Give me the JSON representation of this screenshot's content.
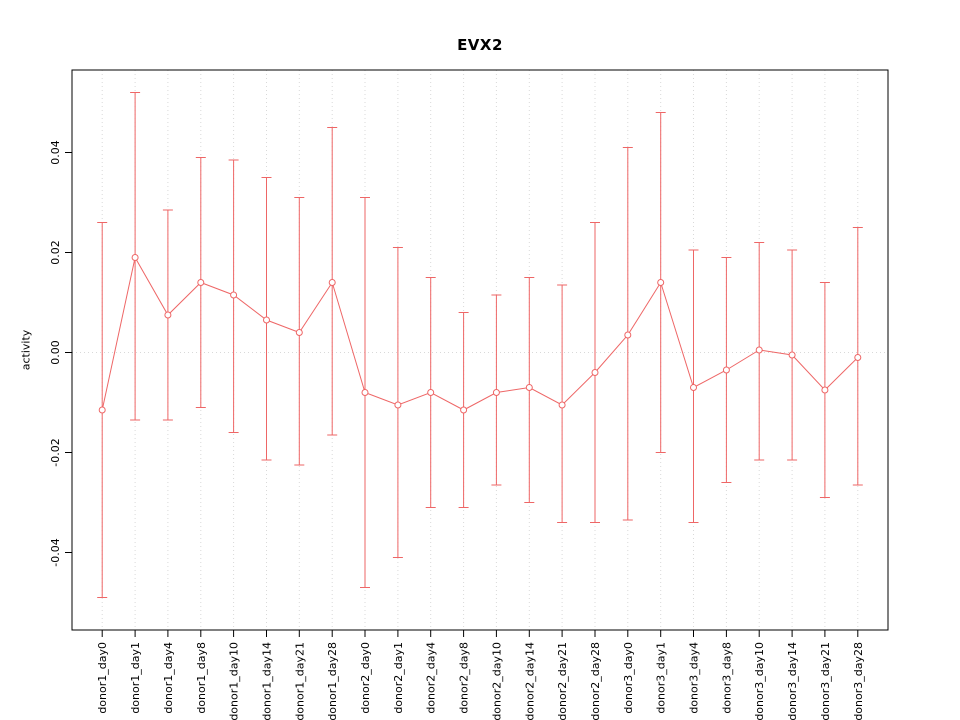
{
  "chart_data": {
    "type": "line",
    "title": "EVX2",
    "ylabel": "activity",
    "xlabel": "",
    "categories": [
      "donor1_day0",
      "donor1_day1",
      "donor1_day4",
      "donor1_day8",
      "donor1_day10",
      "donor1_day14",
      "donor1_day21",
      "donor1_day28",
      "donor2_day0",
      "donor2_day1",
      "donor2_day4",
      "donor2_day8",
      "donor2_day10",
      "donor2_day14",
      "donor2_day21",
      "donor2_day28",
      "donor3_day0",
      "donor3_day1",
      "donor3_day4",
      "donor3_day8",
      "donor3_day10",
      "donor3_day14",
      "donor3_day21",
      "donor3_day28"
    ],
    "series": [
      {
        "name": "activity",
        "values": [
          -0.0115,
          0.019,
          0.0075,
          0.014,
          0.0115,
          0.0065,
          0.004,
          0.014,
          -0.008,
          -0.0105,
          -0.008,
          -0.0115,
          -0.008,
          -0.007,
          -0.0105,
          -0.004,
          0.0035,
          0.014,
          -0.007,
          -0.0035,
          0.0005,
          -0.0005,
          -0.0075,
          -0.001
        ],
        "upper": [
          0.026,
          0.052,
          0.0285,
          0.039,
          0.0385,
          0.035,
          0.031,
          0.045,
          0.031,
          0.021,
          0.015,
          0.008,
          0.0115,
          0.015,
          0.0135,
          0.026,
          0.041,
          0.048,
          0.0205,
          0.019,
          0.022,
          0.0205,
          0.014,
          0.025
        ],
        "lower": [
          -0.049,
          -0.0135,
          -0.0135,
          -0.011,
          -0.016,
          -0.0215,
          -0.0225,
          -0.0165,
          -0.047,
          -0.041,
          -0.031,
          -0.031,
          -0.0265,
          -0.03,
          -0.034,
          -0.034,
          -0.0335,
          -0.02,
          -0.034,
          -0.026,
          -0.0215,
          -0.0215,
          -0.029,
          -0.0265
        ]
      }
    ],
    "ylim": [
      -0.0555,
      0.0565
    ],
    "yticks": [
      -0.04,
      -0.02,
      0.0,
      0.02,
      0.04
    ],
    "grid": "dotted vertical line at each category; dotted horizontal line at y=0",
    "legend": "none",
    "colors": {
      "series": "#ee6666",
      "grid": "#d9d9d9",
      "box": "#000000",
      "text": "#000000",
      "background": "#ffffff"
    }
  }
}
